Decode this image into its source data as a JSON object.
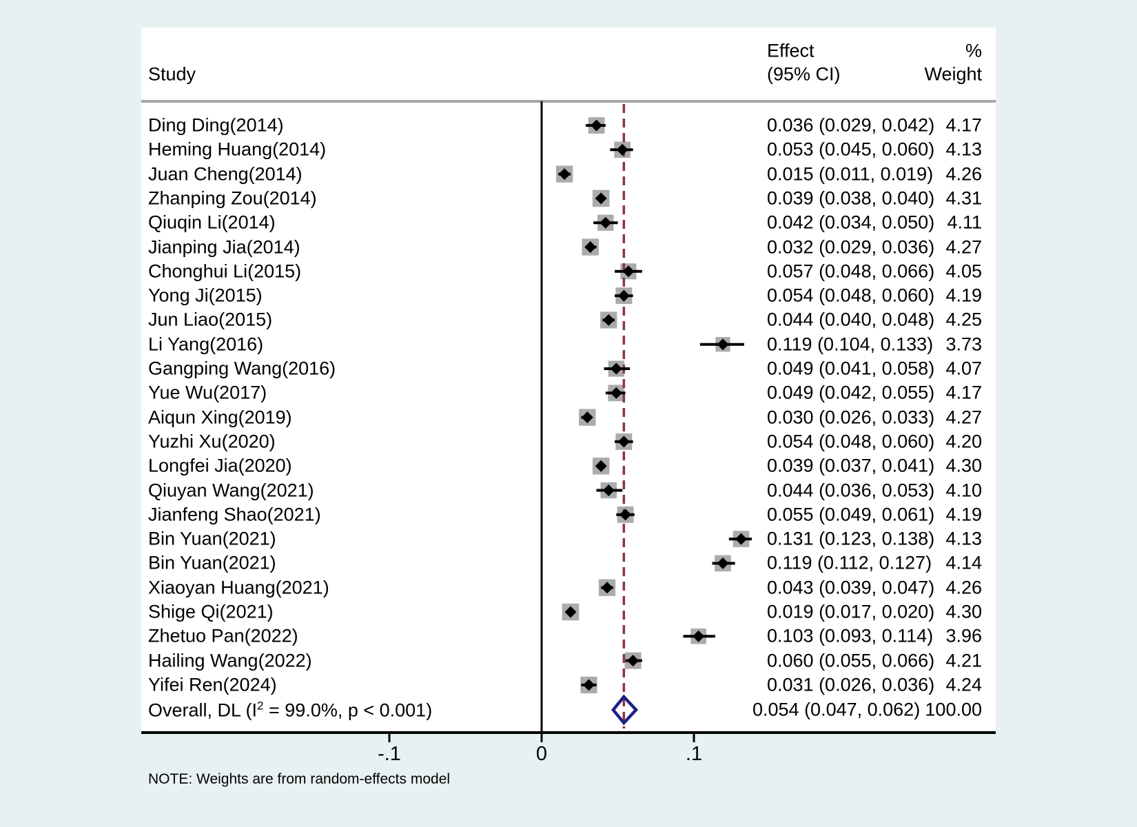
{
  "header": {
    "study": "Study",
    "effect_line1": "Effect",
    "effect_line2": "(95% CI)",
    "weight_line1": "%",
    "weight_line2": "Weight"
  },
  "note": "NOTE: Weights are from random-effects model",
  "colors": {
    "background": "#e8f1f2",
    "plot_background": "#ffffff",
    "weight_box": "#ababab",
    "marker": "#000000",
    "ci_line": "#000000",
    "overall_diamond": "#1f1f8a",
    "overall_dashed_line": "#90353b",
    "header_rule": "#a6a6a6",
    "axis": "#000000"
  },
  "chart_data": {
    "type": "forest",
    "x_axis": {
      "tick_labels": [
        "-.1",
        "0",
        ".1"
      ],
      "tick_values": [
        -0.1,
        0,
        0.1
      ],
      "xlim": [
        -0.26,
        0.3
      ],
      "zero_line": 0
    },
    "studies": [
      {
        "label": "Ding Ding(2014)",
        "effect": 0.036,
        "ci_low": 0.029,
        "ci_high": 0.042,
        "effect_text": "0.036 (0.029, 0.042)",
        "weight": 4.17,
        "weight_text": "4.17"
      },
      {
        "label": "Heming Huang(2014)",
        "effect": 0.053,
        "ci_low": 0.045,
        "ci_high": 0.06,
        "effect_text": "0.053 (0.045, 0.060)",
        "weight": 4.13,
        "weight_text": "4.13"
      },
      {
        "label": "Juan Cheng(2014)",
        "effect": 0.015,
        "ci_low": 0.011,
        "ci_high": 0.019,
        "effect_text": "0.015 (0.011, 0.019)",
        "weight": 4.26,
        "weight_text": "4.26"
      },
      {
        "label": "Zhanping Zou(2014)",
        "effect": 0.039,
        "ci_low": 0.038,
        "ci_high": 0.04,
        "effect_text": "0.039 (0.038, 0.040)",
        "weight": 4.31,
        "weight_text": "4.31"
      },
      {
        "label": "Qiuqin Li(2014)",
        "effect": 0.042,
        "ci_low": 0.034,
        "ci_high": 0.05,
        "effect_text": "0.042 (0.034, 0.050)",
        "weight": 4.11,
        "weight_text": "4.11"
      },
      {
        "label": "Jianping Jia(2014)",
        "effect": 0.032,
        "ci_low": 0.029,
        "ci_high": 0.036,
        "effect_text": "0.032 (0.029, 0.036)",
        "weight": 4.27,
        "weight_text": "4.27"
      },
      {
        "label": "Chonghui Li(2015)",
        "effect": 0.057,
        "ci_low": 0.048,
        "ci_high": 0.066,
        "effect_text": "0.057 (0.048, 0.066)",
        "weight": 4.05,
        "weight_text": "4.05"
      },
      {
        "label": "Yong Ji(2015)",
        "effect": 0.054,
        "ci_low": 0.048,
        "ci_high": 0.06,
        "effect_text": "0.054 (0.048, 0.060)",
        "weight": 4.19,
        "weight_text": "4.19"
      },
      {
        "label": "Jun Liao(2015)",
        "effect": 0.044,
        "ci_low": 0.04,
        "ci_high": 0.048,
        "effect_text": "0.044 (0.040, 0.048)",
        "weight": 4.25,
        "weight_text": "4.25"
      },
      {
        "label": "Li Yang(2016)",
        "effect": 0.119,
        "ci_low": 0.104,
        "ci_high": 0.133,
        "effect_text": "0.119 (0.104, 0.133)",
        "weight": 3.73,
        "weight_text": "3.73"
      },
      {
        "label": "Gangping Wang(2016)",
        "effect": 0.049,
        "ci_low": 0.041,
        "ci_high": 0.058,
        "effect_text": "0.049 (0.041, 0.058)",
        "weight": 4.07,
        "weight_text": "4.07"
      },
      {
        "label": "Yue Wu(2017)",
        "effect": 0.049,
        "ci_low": 0.042,
        "ci_high": 0.055,
        "effect_text": "0.049 (0.042, 0.055)",
        "weight": 4.17,
        "weight_text": "4.17"
      },
      {
        "label": "Aiqun Xing(2019)",
        "effect": 0.03,
        "ci_low": 0.026,
        "ci_high": 0.033,
        "effect_text": "0.030 (0.026, 0.033)",
        "weight": 4.27,
        "weight_text": "4.27"
      },
      {
        "label": "Yuzhi Xu(2020)",
        "effect": 0.054,
        "ci_low": 0.048,
        "ci_high": 0.06,
        "effect_text": "0.054 (0.048, 0.060)",
        "weight": 4.2,
        "weight_text": "4.20"
      },
      {
        "label": "Longfei Jia(2020)",
        "effect": 0.039,
        "ci_low": 0.037,
        "ci_high": 0.041,
        "effect_text": "0.039 (0.037, 0.041)",
        "weight": 4.3,
        "weight_text": "4.30"
      },
      {
        "label": "Qiuyan Wang(2021)",
        "effect": 0.044,
        "ci_low": 0.036,
        "ci_high": 0.053,
        "effect_text": "0.044 (0.036, 0.053)",
        "weight": 4.1,
        "weight_text": "4.10"
      },
      {
        "label": "Jianfeng Shao(2021)",
        "effect": 0.055,
        "ci_low": 0.049,
        "ci_high": 0.061,
        "effect_text": "0.055 (0.049, 0.061)",
        "weight": 4.19,
        "weight_text": "4.19"
      },
      {
        "label": "Bin Yuan(2021)",
        "effect": 0.131,
        "ci_low": 0.123,
        "ci_high": 0.138,
        "effect_text": "0.131 (0.123, 0.138)",
        "weight": 4.13,
        "weight_text": "4.13"
      },
      {
        "label": "Bin Yuan(2021)",
        "effect": 0.119,
        "ci_low": 0.112,
        "ci_high": 0.127,
        "effect_text": "0.119 (0.112, 0.127)",
        "weight": 4.14,
        "weight_text": "4.14"
      },
      {
        "label": "Xiaoyan Huang(2021)",
        "effect": 0.043,
        "ci_low": 0.039,
        "ci_high": 0.047,
        "effect_text": "0.043 (0.039, 0.047)",
        "weight": 4.26,
        "weight_text": "4.26"
      },
      {
        "label": "Shige Qi(2021)",
        "effect": 0.019,
        "ci_low": 0.017,
        "ci_high": 0.02,
        "effect_text": "0.019 (0.017, 0.020)",
        "weight": 4.3,
        "weight_text": "4.30"
      },
      {
        "label": "Zhetuo Pan(2022)",
        "effect": 0.103,
        "ci_low": 0.093,
        "ci_high": 0.114,
        "effect_text": "0.103 (0.093, 0.114)",
        "weight": 3.96,
        "weight_text": "3.96"
      },
      {
        "label": "Hailing Wang(2022)",
        "effect": 0.06,
        "ci_low": 0.055,
        "ci_high": 0.066,
        "effect_text": "0.060 (0.055, 0.066)",
        "weight": 4.21,
        "weight_text": "4.21"
      },
      {
        "label": "Yifei Ren(2024)",
        "effect": 0.031,
        "ci_low": 0.026,
        "ci_high": 0.036,
        "effect_text": "0.031 (0.026, 0.036)",
        "weight": 4.24,
        "weight_text": "4.24"
      }
    ],
    "overall": {
      "label_pre": "Overall, DL (I",
      "label_sup": "2",
      "label_post": " = 99.0%, p < 0.001)",
      "effect": 0.054,
      "ci_low": 0.047,
      "ci_high": 0.062,
      "effect_text": "0.054 (0.047, 0.062)",
      "weight_text": "100.00"
    }
  }
}
